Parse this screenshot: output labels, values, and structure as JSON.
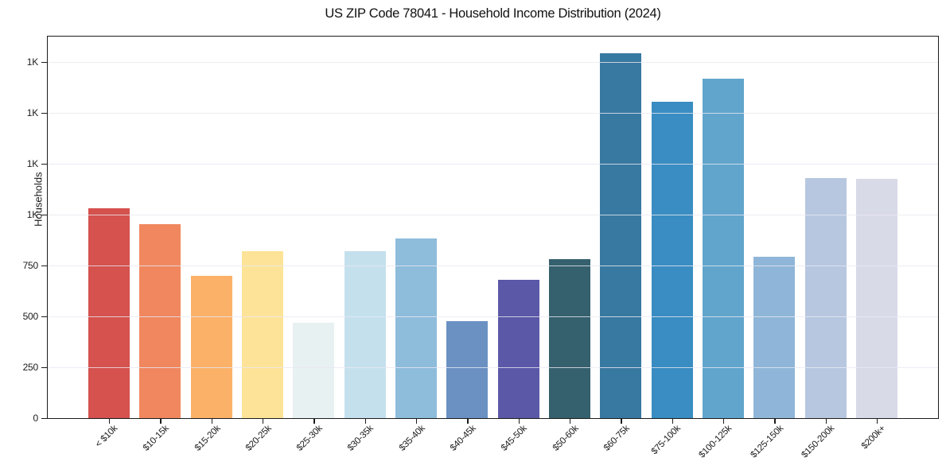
{
  "chart_data": {
    "type": "bar",
    "title": "US ZIP Code 78041 - Household Income Distribution (2024)",
    "xlabel": "",
    "ylabel": "Households",
    "categories": [
      "< $10k",
      "$10-15k",
      "$15-20k",
      "$20-25k",
      "$25-30k",
      "$30-35k",
      "$35-40k",
      "$40-45k",
      "$45-50k",
      "$50-60k",
      "$60-75k",
      "$75-100k",
      "$100-125k",
      "$125-150k",
      "$150-200k",
      "$200k+"
    ],
    "values": [
      1030,
      955,
      700,
      820,
      470,
      820,
      885,
      475,
      680,
      780,
      1795,
      1555,
      1670,
      795,
      1180,
      1175
    ],
    "bar_colors": [
      "#d5524e",
      "#f0875e",
      "#fbb168",
      "#fde398",
      "#e7f1f2",
      "#c4e0ed",
      "#8ebcdb",
      "#6b91c3",
      "#5a58a7",
      "#35606e",
      "#3879a1",
      "#398dc2",
      "#61a5cd",
      "#8fb6d8",
      "#b7c7e0",
      "#d9dae8"
    ],
    "ylim": [
      0,
      1880
    ],
    "yticks": [
      {
        "value": 0,
        "label": "0"
      },
      {
        "value": 250,
        "label": "250"
      },
      {
        "value": 500,
        "label": "500"
      },
      {
        "value": 750,
        "label": "750"
      },
      {
        "value": 1000,
        "label": "1K"
      },
      {
        "value": 1250,
        "label": "1K"
      },
      {
        "value": 1500,
        "label": "1K"
      },
      {
        "value": 1750,
        "label": "1K"
      }
    ],
    "grid": "horizontal",
    "grid_over_bars": true,
    "legend": "none"
  },
  "colors": {
    "background": "#ffffff",
    "axis": "#1c1c1c",
    "gridline": "#e9e9f1",
    "text": "#1a1a1a"
  }
}
